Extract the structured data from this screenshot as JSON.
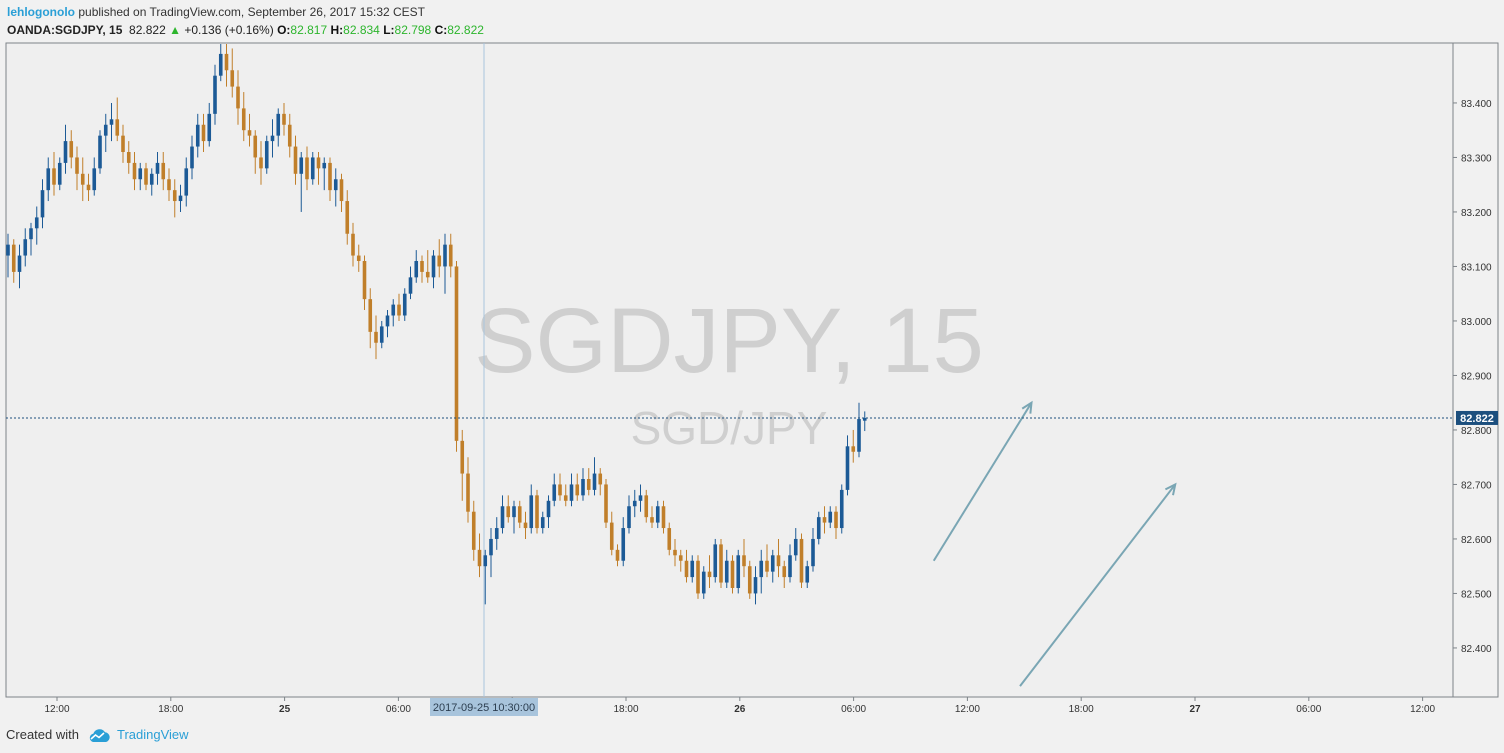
{
  "header": {
    "author": "lehlogonolo",
    "published_text": "published on TradingView.com, September 26, 2017 15:32 CEST",
    "symbol": "OANDA:SGDJPY, 15",
    "last": "82.822",
    "change": "+0.136 (+0.16%)",
    "o_label": "O:",
    "o_value": "82.817",
    "h_label": "H:",
    "h_value": "82.834",
    "l_label": "L:",
    "l_value": "82.798",
    "c_label": "C:",
    "c_value": "82.822"
  },
  "watermark": {
    "main": "SGDJPY, 15",
    "sub": "SGD/JPY"
  },
  "footer": {
    "created_with": "Created with",
    "brand": "TradingView"
  },
  "colors": {
    "up": "#1c5a96",
    "down": "#c07f2a",
    "arrow": "#7aa6b4",
    "price_line": "#1c4f7e",
    "crosshair": "#a8c4dc",
    "background": "#efefef"
  },
  "chart_data": {
    "type": "candlestick",
    "instrument": "SGD/JPY",
    "timeframe": "15",
    "x_tick_labels": [
      "12:00",
      "18:00",
      "25",
      "06:00",
      "12:00",
      "18:00",
      "26",
      "06:00",
      "12:00",
      "18:00",
      "27",
      "06:00",
      "12:00"
    ],
    "y_ticks": [
      "82.400",
      "82.500",
      "82.600",
      "82.700",
      "82.800",
      "82.900",
      "83.000",
      "83.100",
      "83.200",
      "83.300",
      "83.400"
    ],
    "ylim": [
      82.31,
      83.51
    ],
    "current_price": "82.822",
    "crosshair_label": "2017-09-25 10:30:00",
    "candles": [
      {
        "o": 83.12,
        "h": 83.16,
        "l": 83.08,
        "c": 83.14
      },
      {
        "o": 83.14,
        "h": 83.15,
        "l": 83.07,
        "c": 83.09
      },
      {
        "o": 83.09,
        "h": 83.14,
        "l": 83.06,
        "c": 83.12
      },
      {
        "o": 83.12,
        "h": 83.17,
        "l": 83.1,
        "c": 83.15
      },
      {
        "o": 83.15,
        "h": 83.18,
        "l": 83.12,
        "c": 83.17
      },
      {
        "o": 83.17,
        "h": 83.21,
        "l": 83.14,
        "c": 83.19
      },
      {
        "o": 83.19,
        "h": 83.26,
        "l": 83.17,
        "c": 83.24
      },
      {
        "o": 83.24,
        "h": 83.3,
        "l": 83.22,
        "c": 83.28
      },
      {
        "o": 83.28,
        "h": 83.31,
        "l": 83.23,
        "c": 83.25
      },
      {
        "o": 83.25,
        "h": 83.3,
        "l": 83.24,
        "c": 83.29
      },
      {
        "o": 83.29,
        "h": 83.36,
        "l": 83.27,
        "c": 83.33
      },
      {
        "o": 83.33,
        "h": 83.35,
        "l": 83.28,
        "c": 83.3
      },
      {
        "o": 83.3,
        "h": 83.32,
        "l": 83.24,
        "c": 83.27
      },
      {
        "o": 83.27,
        "h": 83.3,
        "l": 83.22,
        "c": 83.25
      },
      {
        "o": 83.25,
        "h": 83.27,
        "l": 83.22,
        "c": 83.24
      },
      {
        "o": 83.24,
        "h": 83.3,
        "l": 83.23,
        "c": 83.28
      },
      {
        "o": 83.28,
        "h": 83.35,
        "l": 83.27,
        "c": 83.34
      },
      {
        "o": 83.34,
        "h": 83.38,
        "l": 83.31,
        "c": 83.36
      },
      {
        "o": 83.36,
        "h": 83.4,
        "l": 83.33,
        "c": 83.37
      },
      {
        "o": 83.37,
        "h": 83.41,
        "l": 83.33,
        "c": 83.34
      },
      {
        "o": 83.34,
        "h": 83.36,
        "l": 83.29,
        "c": 83.31
      },
      {
        "o": 83.31,
        "h": 83.33,
        "l": 83.27,
        "c": 83.29
      },
      {
        "o": 83.29,
        "h": 83.31,
        "l": 83.24,
        "c": 83.26
      },
      {
        "o": 83.26,
        "h": 83.29,
        "l": 83.24,
        "c": 83.28
      },
      {
        "o": 83.28,
        "h": 83.29,
        "l": 83.24,
        "c": 83.25
      },
      {
        "o": 83.25,
        "h": 83.28,
        "l": 83.23,
        "c": 83.27
      },
      {
        "o": 83.27,
        "h": 83.31,
        "l": 83.25,
        "c": 83.29
      },
      {
        "o": 83.29,
        "h": 83.31,
        "l": 83.24,
        "c": 83.26
      },
      {
        "o": 83.26,
        "h": 83.28,
        "l": 83.22,
        "c": 83.24
      },
      {
        "o": 83.24,
        "h": 83.26,
        "l": 83.19,
        "c": 83.22
      },
      {
        "o": 83.22,
        "h": 83.25,
        "l": 83.2,
        "c": 83.23
      },
      {
        "o": 83.23,
        "h": 83.3,
        "l": 83.21,
        "c": 83.28
      },
      {
        "o": 83.28,
        "h": 83.34,
        "l": 83.26,
        "c": 83.32
      },
      {
        "o": 83.32,
        "h": 83.38,
        "l": 83.3,
        "c": 83.36
      },
      {
        "o": 83.36,
        "h": 83.38,
        "l": 83.31,
        "c": 83.33
      },
      {
        "o": 83.33,
        "h": 83.4,
        "l": 83.32,
        "c": 83.38
      },
      {
        "o": 83.38,
        "h": 83.47,
        "l": 83.36,
        "c": 83.45
      },
      {
        "o": 83.45,
        "h": 83.51,
        "l": 83.44,
        "c": 83.49
      },
      {
        "o": 83.49,
        "h": 83.51,
        "l": 83.43,
        "c": 83.46
      },
      {
        "o": 83.46,
        "h": 83.5,
        "l": 83.41,
        "c": 83.43
      },
      {
        "o": 83.43,
        "h": 83.46,
        "l": 83.36,
        "c": 83.39
      },
      {
        "o": 83.39,
        "h": 83.42,
        "l": 83.33,
        "c": 83.35
      },
      {
        "o": 83.35,
        "h": 83.38,
        "l": 83.32,
        "c": 83.34
      },
      {
        "o": 83.34,
        "h": 83.35,
        "l": 83.27,
        "c": 83.3
      },
      {
        "o": 83.3,
        "h": 83.33,
        "l": 83.25,
        "c": 83.28
      },
      {
        "o": 83.28,
        "h": 83.34,
        "l": 83.27,
        "c": 83.33
      },
      {
        "o": 83.33,
        "h": 83.37,
        "l": 83.3,
        "c": 83.34
      },
      {
        "o": 83.34,
        "h": 83.39,
        "l": 83.32,
        "c": 83.38
      },
      {
        "o": 83.38,
        "h": 83.4,
        "l": 83.34,
        "c": 83.36
      },
      {
        "o": 83.36,
        "h": 83.38,
        "l": 83.3,
        "c": 83.32
      },
      {
        "o": 83.32,
        "h": 83.34,
        "l": 83.25,
        "c": 83.27
      },
      {
        "o": 83.27,
        "h": 83.31,
        "l": 83.2,
        "c": 83.3
      },
      {
        "o": 83.3,
        "h": 83.32,
        "l": 83.24,
        "c": 83.26
      },
      {
        "o": 83.26,
        "h": 83.31,
        "l": 83.25,
        "c": 83.3
      },
      {
        "o": 83.3,
        "h": 83.31,
        "l": 83.25,
        "c": 83.28
      },
      {
        "o": 83.28,
        "h": 83.3,
        "l": 83.24,
        "c": 83.29
      },
      {
        "o": 83.29,
        "h": 83.3,
        "l": 83.22,
        "c": 83.24
      },
      {
        "o": 83.24,
        "h": 83.28,
        "l": 83.21,
        "c": 83.26
      },
      {
        "o": 83.26,
        "h": 83.27,
        "l": 83.2,
        "c": 83.22
      },
      {
        "o": 83.22,
        "h": 83.24,
        "l": 83.14,
        "c": 83.16
      },
      {
        "o": 83.16,
        "h": 83.18,
        "l": 83.1,
        "c": 83.12
      },
      {
        "o": 83.12,
        "h": 83.14,
        "l": 83.09,
        "c": 83.11
      },
      {
        "o": 83.11,
        "h": 83.12,
        "l": 83.02,
        "c": 83.04
      },
      {
        "o": 83.04,
        "h": 83.06,
        "l": 82.95,
        "c": 82.98
      },
      {
        "o": 82.98,
        "h": 83.01,
        "l": 82.93,
        "c": 82.96
      },
      {
        "o": 82.96,
        "h": 83.0,
        "l": 82.95,
        "c": 82.99
      },
      {
        "o": 82.99,
        "h": 83.02,
        "l": 82.97,
        "c": 83.01
      },
      {
        "o": 83.01,
        "h": 83.04,
        "l": 82.99,
        "c": 83.03
      },
      {
        "o": 83.03,
        "h": 83.05,
        "l": 83.0,
        "c": 83.01
      },
      {
        "o": 83.01,
        "h": 83.06,
        "l": 83.0,
        "c": 83.05
      },
      {
        "o": 83.05,
        "h": 83.1,
        "l": 83.04,
        "c": 83.08
      },
      {
        "o": 83.08,
        "h": 83.13,
        "l": 83.07,
        "c": 83.11
      },
      {
        "o": 83.11,
        "h": 83.12,
        "l": 83.07,
        "c": 83.09
      },
      {
        "o": 83.09,
        "h": 83.13,
        "l": 83.07,
        "c": 83.08
      },
      {
        "o": 83.08,
        "h": 83.13,
        "l": 83.06,
        "c": 83.12
      },
      {
        "o": 83.12,
        "h": 83.15,
        "l": 83.08,
        "c": 83.1
      },
      {
        "o": 83.1,
        "h": 83.16,
        "l": 83.05,
        "c": 83.14
      },
      {
        "o": 83.14,
        "h": 83.16,
        "l": 83.08,
        "c": 83.1
      },
      {
        "o": 83.1,
        "h": 83.11,
        "l": 82.76,
        "c": 82.78
      },
      {
        "o": 82.78,
        "h": 82.8,
        "l": 82.67,
        "c": 82.72
      },
      {
        "o": 82.72,
        "h": 82.75,
        "l": 82.63,
        "c": 82.65
      },
      {
        "o": 82.65,
        "h": 82.67,
        "l": 82.56,
        "c": 82.58
      },
      {
        "o": 82.58,
        "h": 82.61,
        "l": 82.53,
        "c": 82.55
      },
      {
        "o": 82.55,
        "h": 82.58,
        "l": 82.48,
        "c": 82.57
      },
      {
        "o": 82.57,
        "h": 82.62,
        "l": 82.53,
        "c": 82.6
      },
      {
        "o": 82.6,
        "h": 82.64,
        "l": 82.58,
        "c": 82.62
      },
      {
        "o": 82.62,
        "h": 82.68,
        "l": 82.61,
        "c": 82.66
      },
      {
        "o": 82.66,
        "h": 82.68,
        "l": 82.63,
        "c": 82.64
      },
      {
        "o": 82.64,
        "h": 82.67,
        "l": 82.61,
        "c": 82.66
      },
      {
        "o": 82.66,
        "h": 82.67,
        "l": 82.62,
        "c": 82.63
      },
      {
        "o": 82.63,
        "h": 82.65,
        "l": 82.6,
        "c": 82.62
      },
      {
        "o": 82.62,
        "h": 82.7,
        "l": 82.61,
        "c": 82.68
      },
      {
        "o": 82.68,
        "h": 82.69,
        "l": 82.61,
        "c": 82.62
      },
      {
        "o": 82.62,
        "h": 82.65,
        "l": 82.61,
        "c": 82.64
      },
      {
        "o": 82.64,
        "h": 82.68,
        "l": 82.62,
        "c": 82.67
      },
      {
        "o": 82.67,
        "h": 82.72,
        "l": 82.66,
        "c": 82.7
      },
      {
        "o": 82.7,
        "h": 82.72,
        "l": 82.67,
        "c": 82.68
      },
      {
        "o": 82.68,
        "h": 82.7,
        "l": 82.66,
        "c": 82.67
      },
      {
        "o": 82.67,
        "h": 82.72,
        "l": 82.66,
        "c": 82.7
      },
      {
        "o": 82.7,
        "h": 82.72,
        "l": 82.67,
        "c": 82.68
      },
      {
        "o": 82.68,
        "h": 82.73,
        "l": 82.67,
        "c": 82.71
      },
      {
        "o": 82.71,
        "h": 82.73,
        "l": 82.68,
        "c": 82.69
      },
      {
        "o": 82.69,
        "h": 82.75,
        "l": 82.68,
        "c": 82.72
      },
      {
        "o": 82.72,
        "h": 82.73,
        "l": 82.68,
        "c": 82.7
      },
      {
        "o": 82.7,
        "h": 82.71,
        "l": 82.62,
        "c": 82.63
      },
      {
        "o": 82.63,
        "h": 82.65,
        "l": 82.57,
        "c": 82.58
      },
      {
        "o": 82.58,
        "h": 82.59,
        "l": 82.55,
        "c": 82.56
      },
      {
        "o": 82.56,
        "h": 82.64,
        "l": 82.55,
        "c": 82.62
      },
      {
        "o": 82.62,
        "h": 82.68,
        "l": 82.61,
        "c": 82.66
      },
      {
        "o": 82.66,
        "h": 82.69,
        "l": 82.64,
        "c": 82.67
      },
      {
        "o": 82.67,
        "h": 82.7,
        "l": 82.65,
        "c": 82.68
      },
      {
        "o": 82.68,
        "h": 82.69,
        "l": 82.63,
        "c": 82.64
      },
      {
        "o": 82.64,
        "h": 82.66,
        "l": 82.62,
        "c": 82.63
      },
      {
        "o": 82.63,
        "h": 82.67,
        "l": 82.62,
        "c": 82.66
      },
      {
        "o": 82.66,
        "h": 82.67,
        "l": 82.61,
        "c": 82.62
      },
      {
        "o": 82.62,
        "h": 82.63,
        "l": 82.57,
        "c": 82.58
      },
      {
        "o": 82.58,
        "h": 82.6,
        "l": 82.55,
        "c": 82.57
      },
      {
        "o": 82.57,
        "h": 82.58,
        "l": 82.54,
        "c": 82.56
      },
      {
        "o": 82.56,
        "h": 82.58,
        "l": 82.52,
        "c": 82.53
      },
      {
        "o": 82.53,
        "h": 82.57,
        "l": 82.52,
        "c": 82.56
      },
      {
        "o": 82.56,
        "h": 82.57,
        "l": 82.49,
        "c": 82.5
      },
      {
        "o": 82.5,
        "h": 82.55,
        "l": 82.49,
        "c": 82.54
      },
      {
        "o": 82.54,
        "h": 82.57,
        "l": 82.51,
        "c": 82.53
      },
      {
        "o": 82.53,
        "h": 82.6,
        "l": 82.52,
        "c": 82.59
      },
      {
        "o": 82.59,
        "h": 82.6,
        "l": 82.51,
        "c": 82.52
      },
      {
        "o": 82.52,
        "h": 82.58,
        "l": 82.51,
        "c": 82.56
      },
      {
        "o": 82.56,
        "h": 82.57,
        "l": 82.5,
        "c": 82.51
      },
      {
        "o": 82.51,
        "h": 82.58,
        "l": 82.5,
        "c": 82.57
      },
      {
        "o": 82.57,
        "h": 82.6,
        "l": 82.53,
        "c": 82.55
      },
      {
        "o": 82.55,
        "h": 82.56,
        "l": 82.49,
        "c": 82.5
      },
      {
        "o": 82.5,
        "h": 82.55,
        "l": 82.48,
        "c": 82.53
      },
      {
        "o": 82.53,
        "h": 82.58,
        "l": 82.5,
        "c": 82.56
      },
      {
        "o": 82.56,
        "h": 82.59,
        "l": 82.53,
        "c": 82.54
      },
      {
        "o": 82.54,
        "h": 82.58,
        "l": 82.52,
        "c": 82.57
      },
      {
        "o": 82.57,
        "h": 82.6,
        "l": 82.53,
        "c": 82.55
      },
      {
        "o": 82.55,
        "h": 82.56,
        "l": 82.51,
        "c": 82.53
      },
      {
        "o": 82.53,
        "h": 82.59,
        "l": 82.52,
        "c": 82.57
      },
      {
        "o": 82.57,
        "h": 82.62,
        "l": 82.56,
        "c": 82.6
      },
      {
        "o": 82.6,
        "h": 82.61,
        "l": 82.51,
        "c": 82.52
      },
      {
        "o": 82.52,
        "h": 82.56,
        "l": 82.51,
        "c": 82.55
      },
      {
        "o": 82.55,
        "h": 82.62,
        "l": 82.54,
        "c": 82.6
      },
      {
        "o": 82.6,
        "h": 82.65,
        "l": 82.59,
        "c": 82.64
      },
      {
        "o": 82.64,
        "h": 82.66,
        "l": 82.61,
        "c": 82.63
      },
      {
        "o": 82.63,
        "h": 82.66,
        "l": 82.62,
        "c": 82.65
      },
      {
        "o": 82.65,
        "h": 82.66,
        "l": 82.6,
        "c": 82.62
      },
      {
        "o": 82.62,
        "h": 82.7,
        "l": 82.61,
        "c": 82.69
      },
      {
        "o": 82.69,
        "h": 82.79,
        "l": 82.68,
        "c": 82.77
      },
      {
        "o": 82.77,
        "h": 82.8,
        "l": 82.74,
        "c": 82.76
      },
      {
        "o": 82.76,
        "h": 82.85,
        "l": 82.75,
        "c": 82.82
      },
      {
        "o": 82.817,
        "h": 82.834,
        "l": 82.798,
        "c": 82.822
      }
    ],
    "drawings": [
      {
        "type": "arrow",
        "from": {
          "bar": 161,
          "price": 82.56
        },
        "to": {
          "bar": 178,
          "price": 82.85
        }
      },
      {
        "type": "arrow",
        "from": {
          "bar": 176,
          "price": 82.33
        },
        "to": {
          "bar": 203,
          "price": 82.7
        }
      }
    ]
  }
}
